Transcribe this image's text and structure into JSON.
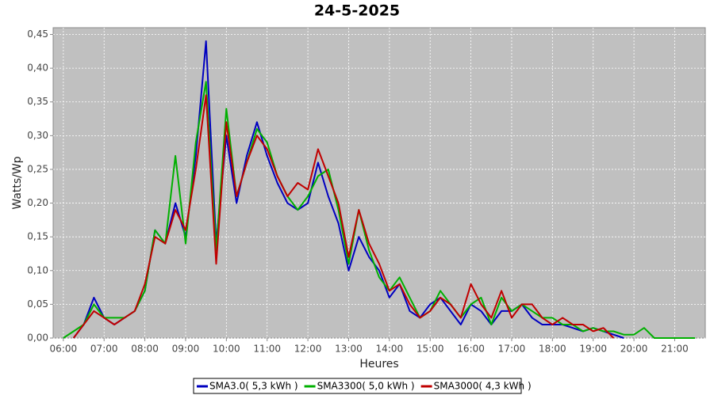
{
  "chart_data": {
    "type": "line",
    "title": "24-5-2025",
    "x_label": "Heures",
    "y_label": "Watts/Wp",
    "x": [
      6.0,
      6.25,
      6.5,
      6.75,
      7.0,
      7.25,
      7.5,
      7.75,
      8.0,
      8.25,
      8.5,
      8.75,
      9.0,
      9.25,
      9.5,
      9.75,
      10.0,
      10.25,
      10.5,
      10.75,
      11.0,
      11.25,
      11.5,
      11.75,
      12.0,
      12.25,
      12.5,
      12.75,
      13.0,
      13.25,
      13.5,
      13.75,
      14.0,
      14.25,
      14.5,
      14.75,
      15.0,
      15.25,
      15.5,
      15.75,
      16.0,
      16.25,
      16.5,
      16.75,
      17.0,
      17.25,
      17.5,
      17.75,
      18.0,
      18.25,
      18.5,
      18.75,
      19.0,
      19.25,
      19.5,
      19.75,
      20.0,
      20.25,
      20.5,
      20.75,
      21.0,
      21.25,
      21.5
    ],
    "series": [
      {
        "name": "SMA3.0( 5,3 kWh )",
        "color": "#0000c0",
        "values": [
          null,
          0,
          0.02,
          0.06,
          0.03,
          0.02,
          0.03,
          0.04,
          0.07,
          0.16,
          0.14,
          0.2,
          0.15,
          0.27,
          0.44,
          0.14,
          0.3,
          0.2,
          0.27,
          0.32,
          0.27,
          0.23,
          0.2,
          0.19,
          0.2,
          0.26,
          0.21,
          0.17,
          0.1,
          0.15,
          0.12,
          0.1,
          0.06,
          0.08,
          0.04,
          0.03,
          0.05,
          0.06,
          0.04,
          0.02,
          0.05,
          0.04,
          0.02,
          0.04,
          0.04,
          0.05,
          0.03,
          0.02,
          0.02,
          0.02,
          0.015,
          0.01,
          0.015,
          0.01,
          0.005,
          0,
          null,
          null,
          null,
          null,
          null,
          null,
          null
        ]
      },
      {
        "name": "SMA3300( 5,0 kWh )",
        "color": "#00b000",
        "values": [
          0,
          0.01,
          0.02,
          0.05,
          0.03,
          0.03,
          0.03,
          0.04,
          0.07,
          0.16,
          0.14,
          0.27,
          0.14,
          0.29,
          0.38,
          0.13,
          0.34,
          0.21,
          0.26,
          0.31,
          0.29,
          0.24,
          0.21,
          0.19,
          0.21,
          0.24,
          0.25,
          0.19,
          0.11,
          0.19,
          0.13,
          0.09,
          0.07,
          0.09,
          0.06,
          0.03,
          0.04,
          0.07,
          0.05,
          0.03,
          0.05,
          0.06,
          0.02,
          0.06,
          0.04,
          0.05,
          0.04,
          0.03,
          0.03,
          0.02,
          0.02,
          0.01,
          0.015,
          0.01,
          0.01,
          0.005,
          0.005,
          0.015,
          0,
          0,
          0,
          0,
          0
        ]
      },
      {
        "name": "SMA3000( 4,3 kWh )",
        "color": "#c00000",
        "values": [
          null,
          0,
          0.02,
          0.04,
          0.03,
          0.02,
          0.03,
          0.04,
          0.08,
          0.15,
          0.14,
          0.19,
          0.16,
          0.25,
          0.36,
          0.11,
          0.32,
          0.21,
          0.26,
          0.3,
          0.28,
          0.24,
          0.21,
          0.23,
          0.22,
          0.28,
          0.24,
          0.2,
          0.12,
          0.19,
          0.14,
          0.11,
          0.07,
          0.08,
          0.05,
          0.03,
          0.04,
          0.06,
          0.05,
          0.03,
          0.08,
          0.05,
          0.03,
          0.07,
          0.03,
          0.05,
          0.05,
          0.03,
          0.02,
          0.03,
          0.02,
          0.02,
          0.01,
          0.015,
          0,
          null,
          null,
          null,
          null,
          null,
          null,
          null,
          null
        ]
      }
    ],
    "xlim": [
      5.75,
      21.75
    ],
    "xticks": [
      {
        "value": 6,
        "label": "06:00"
      },
      {
        "value": 7,
        "label": "07:00"
      },
      {
        "value": 8,
        "label": "08:00"
      },
      {
        "value": 9,
        "label": "09:00"
      },
      {
        "value": 10,
        "label": "10:00"
      },
      {
        "value": 11,
        "label": "11:00"
      },
      {
        "value": 12,
        "label": "12:00"
      },
      {
        "value": 13,
        "label": "13:00"
      },
      {
        "value": 14,
        "label": "14:00"
      },
      {
        "value": 15,
        "label": "15:00"
      },
      {
        "value": 16,
        "label": "16:00"
      },
      {
        "value": 17,
        "label": "17:00"
      },
      {
        "value": 18,
        "label": "18:00"
      },
      {
        "value": 19,
        "label": "19:00"
      },
      {
        "value": 20,
        "label": "20:00"
      },
      {
        "value": 21,
        "label": "21:00"
      }
    ],
    "ylim": [
      0,
      0.46
    ],
    "yticks": [
      {
        "value": 0,
        "label": "0,00"
      },
      {
        "value": 0.05,
        "label": "0,05"
      },
      {
        "value": 0.1,
        "label": "0,10"
      },
      {
        "value": 0.15,
        "label": "0,15"
      },
      {
        "value": 0.2,
        "label": "0,20"
      },
      {
        "value": 0.25,
        "label": "0,25"
      },
      {
        "value": 0.3,
        "label": "0,30"
      },
      {
        "value": 0.35,
        "label": "0,35"
      },
      {
        "value": 0.4,
        "label": "0,40"
      },
      {
        "value": 0.45,
        "label": "0,45"
      }
    ],
    "grid": true,
    "legend": "bottom"
  }
}
